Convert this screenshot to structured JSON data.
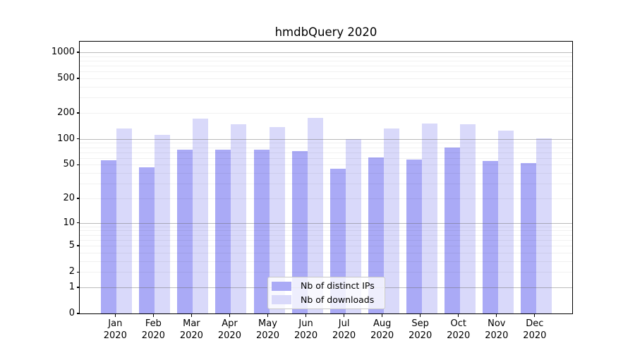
{
  "chart_data": {
    "type": "bar",
    "title": "hmdbQuery 2020",
    "categories": [
      "Jan",
      "Feb",
      "Mar",
      "Apr",
      "May",
      "Jun",
      "Jul",
      "Aug",
      "Sep",
      "Oct",
      "Nov",
      "Dec"
    ],
    "year_label": "2020",
    "series": [
      {
        "name": "Nb of distinct IPs",
        "color": "#aaaaf6",
        "values": [
          56,
          47,
          75,
          75,
          75,
          72,
          45,
          61,
          58,
          79,
          55,
          52
        ]
      },
      {
        "name": "Nb of downloads",
        "color": "#d9d9fa",
        "values": [
          133,
          111,
          173,
          149,
          137,
          175,
          100,
          132,
          152,
          148,
          124,
          102
        ]
      }
    ],
    "yscale": "log1p",
    "ylim": [
      0,
      1300
    ],
    "yticks": [
      0,
      1,
      2,
      5,
      10,
      20,
      50,
      100,
      200,
      500,
      1000
    ],
    "major_gridlines": [
      1,
      10,
      100,
      1000
    ],
    "grid": true,
    "legend_position": "lower center"
  }
}
